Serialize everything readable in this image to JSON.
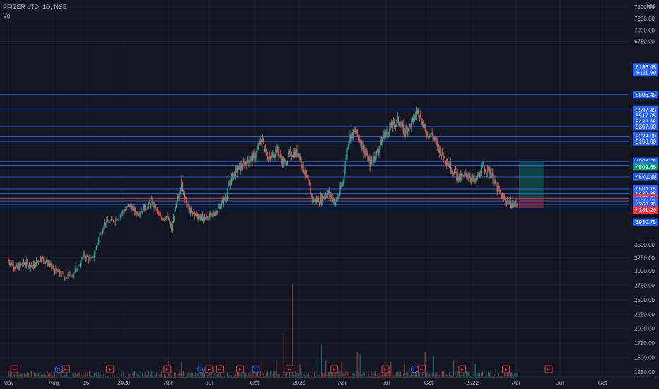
{
  "header": {
    "symbol": "PFIZER LTD, 1D, NSE",
    "volume_label": "Vol",
    "currency": "INR"
  },
  "colors": {
    "background": "#131722",
    "up": "#26a69a",
    "down": "#ef5350",
    "level_line": "#2962ff",
    "axis_text": "#b2b5be",
    "label_blue": "#2962ff",
    "label_green": "#089981",
    "label_red": "#f23645",
    "label_gray": "#787b86"
  },
  "chart_data": {
    "type": "candlestick",
    "title": "PFIZER LTD, 1D, NSE",
    "ylabel": "INR",
    "ylim": [
      1150,
      7700
    ],
    "y_ticks": [
      7500,
      7250,
      7000,
      6750,
      3500,
      3250,
      3000,
      2750,
      2500,
      2250,
      2000,
      1750,
      1500,
      1250
    ],
    "y_tick_labels": [
      "7500.00",
      "7250.00",
      "7000.00",
      "6750.00",
      "3500.00",
      "3250.00",
      "3000.00",
      "2750.00",
      "2500.00",
      "2250.00",
      "2000.00",
      "1750.00",
      "1500.00",
      "1250.00"
    ],
    "x_tick_labels": [
      "May",
      "Aug",
      "15",
      "2020",
      "Apr",
      "Jul",
      "Oct",
      "2021",
      "Apr",
      "Jul",
      "Oct",
      "2022",
      "Apr",
      "Jul",
      "Oct"
    ],
    "x_tick_index": [
      0,
      63,
      95,
      128,
      185,
      247,
      310,
      371,
      431,
      493,
      555,
      616,
      676,
      738,
      800
    ],
    "price_path": [
      [
        0,
        3200
      ],
      [
        12,
        3050
      ],
      [
        20,
        3150
      ],
      [
        35,
        3100
      ],
      [
        45,
        3250
      ],
      [
        55,
        3150
      ],
      [
        65,
        3000
      ],
      [
        75,
        2900
      ],
      [
        85,
        3000
      ],
      [
        92,
        3300
      ],
      [
        100,
        3200
      ],
      [
        110,
        3900
      ],
      [
        118,
        3950
      ],
      [
        128,
        4150
      ],
      [
        135,
        4250
      ],
      [
        145,
        4100
      ],
      [
        155,
        4200
      ],
      [
        165,
        4300
      ],
      [
        175,
        4000
      ],
      [
        183,
        4050
      ],
      [
        190,
        3800
      ],
      [
        198,
        4300
      ],
      [
        205,
        4600
      ],
      [
        212,
        4300
      ],
      [
        220,
        4100
      ],
      [
        230,
        4050
      ],
      [
        240,
        4000
      ],
      [
        250,
        4050
      ],
      [
        260,
        4200
      ],
      [
        270,
        4400
      ],
      [
        280,
        4700
      ],
      [
        290,
        4800
      ],
      [
        300,
        4900
      ],
      [
        310,
        4950
      ],
      [
        320,
        5200
      ],
      [
        330,
        4900
      ],
      [
        340,
        5050
      ],
      [
        350,
        4850
      ],
      [
        360,
        5000
      ],
      [
        370,
        5000
      ],
      [
        380,
        4700
      ],
      [
        390,
        4350
      ],
      [
        400,
        4350
      ],
      [
        412,
        4450
      ],
      [
        422,
        4300
      ],
      [
        432,
        4600
      ],
      [
        440,
        5200
      ],
      [
        450,
        5300
      ],
      [
        460,
        5100
      ],
      [
        470,
        4850
      ],
      [
        480,
        5000
      ],
      [
        490,
        5250
      ],
      [
        500,
        5350
      ],
      [
        510,
        5450
      ],
      [
        520,
        5300
      ],
      [
        530,
        5400
      ],
      [
        540,
        5600
      ],
      [
        550,
        5300
      ],
      [
        560,
        5250
      ],
      [
        570,
        5050
      ],
      [
        580,
        4900
      ],
      [
        590,
        4750
      ],
      [
        600,
        4650
      ],
      [
        610,
        4700
      ],
      [
        620,
        4600
      ],
      [
        630,
        4800
      ],
      [
        640,
        4750
      ],
      [
        650,
        4500
      ],
      [
        660,
        4350
      ],
      [
        670,
        4250
      ],
      [
        678,
        4300
      ]
    ],
    "volume_spikes": [
      [
        90,
        1250
      ],
      [
        185,
        1440
      ],
      [
        205,
        1420
      ],
      [
        237,
        1330
      ],
      [
        308,
        1360
      ],
      [
        320,
        1420
      ],
      [
        340,
        1440
      ],
      [
        350,
        1920
      ],
      [
        362,
        2780
      ],
      [
        372,
        1380
      ],
      [
        396,
        1460
      ],
      [
        402,
        1720
      ],
      [
        408,
        1440
      ],
      [
        430,
        1420
      ],
      [
        452,
        1600
      ],
      [
        456,
        1560
      ],
      [
        500,
        1420
      ],
      [
        520,
        1380
      ],
      [
        550,
        1600
      ],
      [
        562,
        1520
      ],
      [
        590,
        1440
      ],
      [
        620,
        1400
      ],
      [
        648,
        1300
      ]
    ],
    "levels": [
      {
        "label": "6186.95",
        "value": 6186.95,
        "line": false,
        "kind": "blue"
      },
      {
        "label": "6111.90",
        "value": 6111.9,
        "line": false,
        "kind": "blue"
      },
      {
        "label": "5806.45",
        "value": 5806.45,
        "line": true,
        "kind": "blue"
      },
      {
        "label": "5597.45",
        "value": 5597.45,
        "line": true,
        "kind": "blue"
      },
      {
        "label": "5517.05",
        "value": 5517.05,
        "line": false,
        "kind": "blue"
      },
      {
        "label": "5436.65",
        "value": 5436.65,
        "line": false,
        "kind": "blue"
      },
      {
        "label": "5367.00",
        "value": 5367.0,
        "line": true,
        "kind": "blue"
      },
      {
        "label": "5233.00",
        "value": 5233.0,
        "line": true,
        "kind": "blue"
      },
      {
        "label": "5158.00",
        "value": 5158.0,
        "line": true,
        "kind": "blue"
      },
      {
        "label": "4884.65",
        "value": 4884.65,
        "line": true,
        "kind": "blue"
      },
      {
        "label": "4831.05",
        "value": 4831.05,
        "line": true,
        "kind": "blue"
      },
      {
        "label": "4809.65",
        "value": 4809.65,
        "line": false,
        "kind": "green"
      },
      {
        "label": "4670.30",
        "value": 4670.3,
        "line": true,
        "kind": "blue"
      },
      {
        "label": "4504.15",
        "value": 4504.15,
        "line": true,
        "kind": "blue"
      },
      {
        "label": "4439.85",
        "value": 4439.85,
        "line": true,
        "kind": "blue"
      },
      {
        "label": "4375.55",
        "value": 4375.55,
        "line": false,
        "kind": "gray"
      },
      {
        "label": "4373.50",
        "value": 4373.5,
        "line": true,
        "kind": "red"
      },
      {
        "label": "4338.05",
        "value": 4338.05,
        "line": true,
        "kind": "blue"
      },
      {
        "label": "4268.35",
        "value": 4268.35,
        "line": true,
        "kind": "blue"
      },
      {
        "label": "4182.60",
        "value": 4182.6,
        "line": true,
        "kind": "blue"
      },
      {
        "label": "4161.20",
        "value": 4161.2,
        "line": false,
        "kind": "red"
      },
      {
        "label": "3930.75",
        "value": 3930.75,
        "line": false,
        "kind": "blue"
      }
    ],
    "position_box": {
      "entry": 4373.5,
      "target": 4880,
      "stop": 4200,
      "start_index": 680,
      "end_index": 716
    },
    "events": [
      {
        "index": 8,
        "label": "E",
        "kind": "earnings"
      },
      {
        "index": 68,
        "label": "D",
        "kind": "dividend"
      },
      {
        "index": 75,
        "label": "E",
        "kind": "earnings"
      },
      {
        "index": 116,
        "label": "E",
        "kind": "earnings"
      },
      {
        "index": 184,
        "label": "E",
        "kind": "earnings"
      },
      {
        "index": 235,
        "label": "D",
        "kind": "dividend"
      },
      {
        "index": 247,
        "label": "E",
        "kind": "earnings"
      },
      {
        "index": 262,
        "label": "E",
        "kind": "earnings"
      },
      {
        "index": 290,
        "label": "E",
        "kind": "earnings"
      },
      {
        "index": 312,
        "label": "D",
        "kind": "dividend"
      },
      {
        "index": 358,
        "label": "E",
        "kind": "earnings"
      },
      {
        "index": 420,
        "label": "E",
        "kind": "earnings"
      },
      {
        "index": 492,
        "label": "E",
        "kind": "earnings"
      },
      {
        "index": 535,
        "label": "D",
        "kind": "dividend"
      },
      {
        "index": 545,
        "label": "E",
        "kind": "earnings"
      },
      {
        "index": 602,
        "label": "E",
        "kind": "earnings"
      },
      {
        "index": 662,
        "label": "E",
        "kind": "earnings"
      },
      {
        "index": 722,
        "label": "E",
        "kind": "earnings"
      }
    ]
  }
}
